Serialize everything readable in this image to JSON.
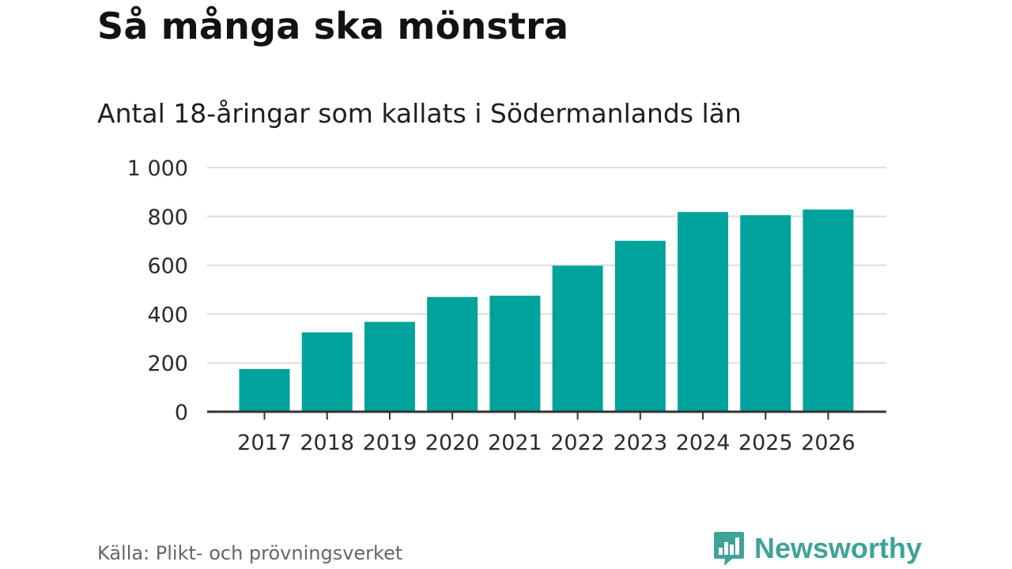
{
  "title": "Så många ska mönstra",
  "subtitle": "Antal 18-åringar som kallats i Södermanlands län",
  "source": "Källa: Plikt- och prövningsverket",
  "brand": {
    "name": "Newsworthy",
    "icon": "newsworthy-logo-icon",
    "color": "#3fa39a"
  },
  "colors": {
    "bar": "#00a39b",
    "grid": "#dddddd",
    "axis": "#333333",
    "tick_text": "#2b2b2b"
  },
  "chart_data": {
    "type": "bar",
    "categories": [
      "2017",
      "2018",
      "2019",
      "2020",
      "2021",
      "2022",
      "2023",
      "2024",
      "2025",
      "2026"
    ],
    "values": [
      175,
      325,
      368,
      470,
      475,
      598,
      700,
      818,
      805,
      828
    ],
    "ylim": [
      0,
      1000
    ],
    "yticks": [
      0,
      200,
      400,
      600,
      800,
      1000
    ],
    "ytick_labels": [
      "0",
      "200",
      "400",
      "600",
      "800",
      "1 000"
    ],
    "grid": true,
    "xlabel": "",
    "ylabel": ""
  }
}
